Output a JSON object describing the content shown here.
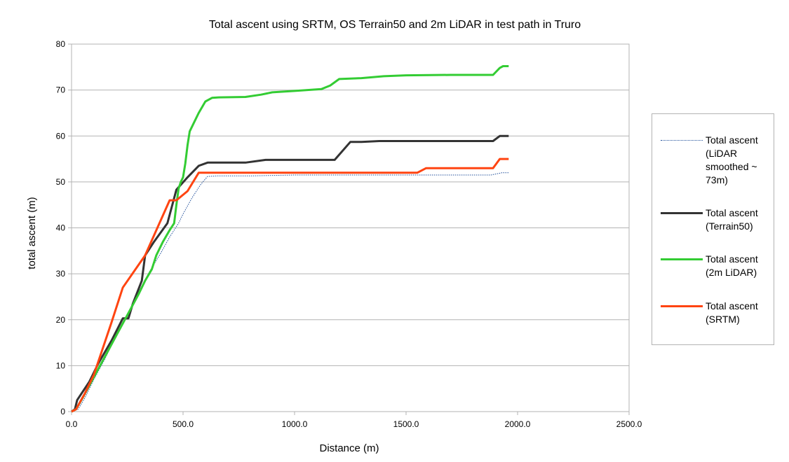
{
  "chart_data": {
    "type": "line",
    "title": "Total ascent using SRTM, OS Terrain50 and 2m LiDAR in test path in Truro",
    "xlabel": "Distance (m)",
    "ylabel": "total ascent (m)",
    "xlim": [
      0,
      2500
    ],
    "ylim": [
      0,
      80
    ],
    "xticks": [
      0,
      500,
      1000,
      1500,
      2000,
      2500
    ],
    "xtick_labels": [
      "0.0",
      "500.0",
      "1000.0",
      "1500.0",
      "2000.0",
      "2500.0"
    ],
    "yticks": [
      0,
      10,
      20,
      30,
      40,
      50,
      60,
      70,
      80
    ],
    "ytick_labels": [
      "0",
      "10",
      "20",
      "30",
      "40",
      "50",
      "60",
      "70",
      "80"
    ],
    "grid": "horizontal",
    "legend_position": "right",
    "series": [
      {
        "name": "Total ascent (LiDAR smoothed ~ 73m)",
        "color": "#1f4e9a",
        "style": "dotted",
        "x": [
          0,
          30,
          60,
          100,
          150,
          200,
          250,
          300,
          350,
          400,
          440,
          480,
          500,
          540,
          580,
          610,
          650,
          800,
          1000,
          1500,
          1880,
          1910,
          1930,
          1960
        ],
        "y": [
          0,
          0.5,
          3,
          7,
          11.5,
          16.5,
          21,
          26,
          30.5,
          34.5,
          38,
          41,
          43,
          46.5,
          49.5,
          51.2,
          51.3,
          51.3,
          51.5,
          51.5,
          51.5,
          51.8,
          52,
          52
        ]
      },
      {
        "name": "Total ascent (Terrain50)",
        "color": "#333333",
        "style": "solid",
        "x": [
          0,
          15,
          25,
          80,
          120,
          180,
          230,
          255,
          275,
          315,
          330,
          370,
          430,
          470,
          520,
          570,
          610,
          780,
          870,
          1000,
          1180,
          1250,
          1300,
          1380,
          1500,
          1700,
          1890,
          1920,
          1960
        ],
        "y": [
          0,
          0.5,
          2.5,
          6.5,
          10.5,
          15.5,
          20.3,
          20.3,
          23.5,
          28.5,
          34,
          37,
          41,
          48.3,
          51,
          53.5,
          54.2,
          54.2,
          54.8,
          54.8,
          54.8,
          58.7,
          58.7,
          58.9,
          58.9,
          58.9,
          58.9,
          60,
          60
        ]
      },
      {
        "name": "Total ascent (2m LiDAR)",
        "color": "#33cc33",
        "style": "solid",
        "x": [
          0,
          20,
          50,
          100,
          150,
          200,
          250,
          300,
          330,
          360,
          380,
          410,
          440,
          460,
          470,
          480,
          490,
          500,
          510,
          520,
          530,
          545,
          570,
          600,
          630,
          660,
          780,
          850,
          900,
          1000,
          1120,
          1160,
          1200,
          1300,
          1400,
          1500,
          1700,
          1890,
          1920,
          1935,
          1960
        ],
        "y": [
          0,
          0.5,
          3,
          7.5,
          12,
          16.5,
          21,
          25.5,
          28.5,
          31,
          34,
          37,
          39.5,
          41,
          45,
          48.5,
          50,
          51,
          54,
          58,
          61,
          62.5,
          65,
          67.5,
          68.3,
          68.4,
          68.5,
          69,
          69.5,
          69.8,
          70.2,
          71,
          72.4,
          72.6,
          73,
          73.2,
          73.3,
          73.3,
          74.8,
          75.2,
          75.2
        ]
      },
      {
        "name": "Total ascent (SRTM)",
        "color": "#ff4411",
        "style": "solid",
        "x": [
          0,
          20,
          60,
          100,
          180,
          230,
          330,
          440,
          470,
          520,
          570,
          800,
          1000,
          1300,
          1550,
          1590,
          1700,
          1890,
          1920,
          1960
        ],
        "y": [
          0,
          0.5,
          4,
          8,
          19.5,
          27,
          34,
          46,
          46,
          48,
          52,
          52,
          52,
          52,
          52,
          53,
          53,
          53,
          55,
          55
        ]
      }
    ]
  }
}
